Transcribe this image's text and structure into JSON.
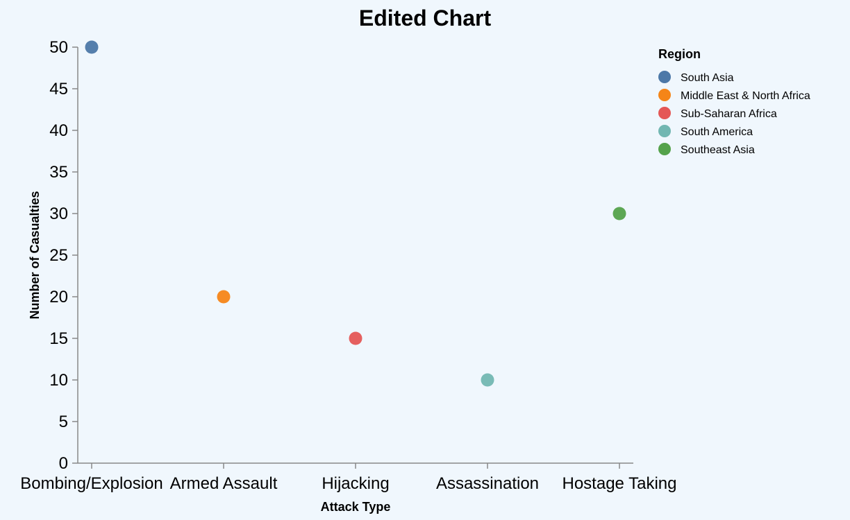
{
  "chart_data": {
    "type": "scatter",
    "title": "Edited Chart",
    "xlabel": "Attack Type",
    "ylabel": "Number of Casualties",
    "categories": [
      "Bombing/Explosion",
      "Armed Assault",
      "Hijacking",
      "Assassination",
      "Hostage Taking"
    ],
    "ylim": [
      0,
      50
    ],
    "yticks": [
      0,
      5,
      10,
      15,
      20,
      25,
      30,
      35,
      40,
      45,
      50
    ],
    "grid": false,
    "legend": {
      "title": "Region",
      "placement": "top-right",
      "entries": [
        {
          "name": "South Asia",
          "color": "#4c78a8"
        },
        {
          "name": "Middle East & North Africa",
          "color": "#f58518"
        },
        {
          "name": "Sub-Saharan Africa",
          "color": "#e45756"
        },
        {
          "name": "South America",
          "color": "#72b7b2"
        },
        {
          "name": "Southeast Asia",
          "color": "#54a24b"
        }
      ]
    },
    "points": [
      {
        "x": "Bombing/Explosion",
        "y": 50,
        "region": "South Asia",
        "color": "#4c78a8"
      },
      {
        "x": "Armed Assault",
        "y": 20,
        "region": "Middle East & North Africa",
        "color": "#f58518"
      },
      {
        "x": "Hijacking",
        "y": 15,
        "region": "Sub-Saharan Africa",
        "color": "#e45756"
      },
      {
        "x": "Assassination",
        "y": 10,
        "region": "South America",
        "color": "#72b7b2"
      },
      {
        "x": "Hostage Taking",
        "y": 30,
        "region": "Southeast Asia",
        "color": "#54a24b"
      }
    ]
  }
}
